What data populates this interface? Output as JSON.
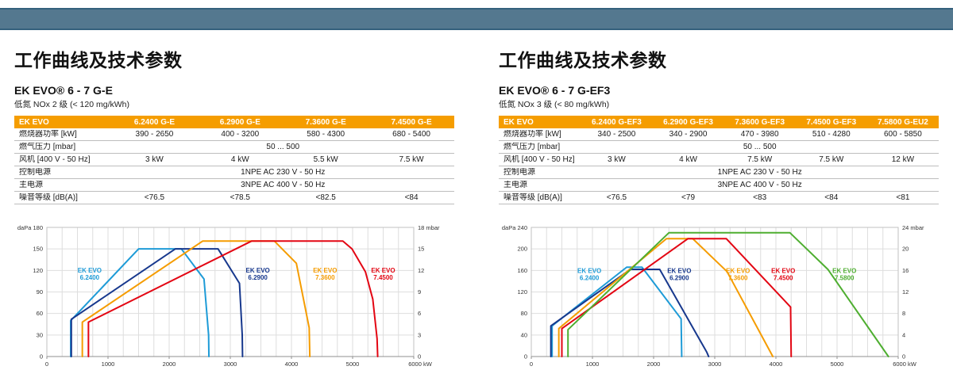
{
  "page": {
    "band_color": "#54788F",
    "accent_orange": "#F59D00"
  },
  "sections": [
    {
      "title": "工作曲线及技术参数",
      "model": "EK EVO® 6 - 7 G-E",
      "nox": "低氮 NOx 2 级 (< 120 mg/kWh)",
      "table": {
        "header": [
          "EK EVO",
          "6.2400 G-E",
          "6.2900 G-E",
          "7.3600 G-E",
          "7.4500 G-E"
        ],
        "rows": [
          {
            "label": "燃烧器功率 [kW]",
            "values": [
              "390 - 2650",
              "400 - 3200",
              "580 - 4300",
              "680 - 5400"
            ]
          },
          {
            "label": "燃气压力 [mbar]",
            "span": "50 ... 500"
          },
          {
            "label": "风机 [400 V - 50 Hz]",
            "values": [
              "3 kW",
              "4 kW",
              "5.5 kW",
              "7.5 kW"
            ]
          },
          {
            "label": "控制电源",
            "span": "1NPE AC 230 V - 50 Hz"
          },
          {
            "label": "主电源",
            "span": "3NPE AC 400 V - 50 Hz"
          },
          {
            "label": "噪音等级 [dB(A)]",
            "values": [
              "<76.5",
              "<78.5",
              "<82.5",
              "<84"
            ]
          }
        ]
      }
    },
    {
      "title": "工作曲线及技术参数",
      "model": "EK EVO® 6 - 7 G-EF3",
      "nox": "低氮 NOx 3 级 (< 80 mg/kWh)",
      "table": {
        "header": [
          "EK EVO",
          "6.2400 G-EF3",
          "6.2900 G-EF3",
          "7.3600 G-EF3",
          "7.4500 G-EF3",
          "7.5800 G-EU2"
        ],
        "rows": [
          {
            "label": "燃烧器功率 [kW]",
            "values": [
              "340 - 2500",
              "340 - 2900",
              "470 - 3980",
              "510 - 4280",
              "600 - 5850"
            ]
          },
          {
            "label": "燃气压力 [mbar]",
            "span": "50 ... 500"
          },
          {
            "label": "风机 [400 V - 50 Hz]",
            "values": [
              "3 kW",
              "4 kW",
              "7.5 kW",
              "7.5 kW",
              "12 kW"
            ]
          },
          {
            "label": "控制电源",
            "span": "1NPE AC 230 V - 50 Hz"
          },
          {
            "label": "主电源",
            "span": "3NPE AC 400 V - 50 Hz"
          },
          {
            "label": "噪音等级 [dB(A)]",
            "values": [
              "<76.5",
              "<79",
              "<83",
              "<84",
              "<81"
            ]
          }
        ]
      }
    }
  ],
  "chart_data": [
    {
      "type": "line",
      "title": "EK EVO 6 - 7 G-E 工作曲线",
      "xlabel": "kW",
      "ylabel_left": "daPa",
      "ylabel_right": "mbar",
      "xlim": [
        0,
        6000
      ],
      "ylim_left": [
        0,
        180
      ],
      "ylim_right": [
        0,
        18
      ],
      "x_ticks": [
        0,
        1000,
        2000,
        3000,
        4000,
        5000
      ],
      "x_end_tick": 6000,
      "x_end_label": "6000 kW",
      "y_ticks_left": [
        0,
        30,
        60,
        90,
        120,
        150
      ],
      "y_top_label_left": "daPa 180",
      "y_ticks_right": [
        0,
        3,
        6,
        9,
        12,
        15
      ],
      "y_top_label_right": "18 mbar",
      "x_minor_step": 250,
      "grid": true,
      "series": [
        {
          "name": "EK EVO 6.2400",
          "color": "#1E9BD7",
          "label": [
            "EK EVO",
            "6.2400"
          ],
          "label_pos": [
            700,
            113
          ],
          "points": [
            [
              390,
              0
            ],
            [
              390,
              50
            ],
            [
              1500,
              150
            ],
            [
              2200,
              150
            ],
            [
              2570,
              108
            ],
            [
              2645,
              30
            ],
            [
              2650,
              0
            ]
          ]
        },
        {
          "name": "EK EVO 6.2900",
          "color": "#17388D",
          "label": [
            "EK EVO",
            "6.2900"
          ],
          "label_pos": [
            3450,
            113
          ],
          "points": [
            [
              400,
              0
            ],
            [
              400,
              52
            ],
            [
              2100,
              150
            ],
            [
              2800,
              150
            ],
            [
              3150,
              102
            ],
            [
              3195,
              30
            ],
            [
              3200,
              0
            ]
          ]
        },
        {
          "name": "EK EVO 7.3600",
          "color": "#F59C00",
          "label": [
            "EK EVO",
            "7.3600"
          ],
          "label_pos": [
            4550,
            113
          ],
          "points": [
            [
              580,
              0
            ],
            [
              580,
              48
            ],
            [
              2550,
              161
            ],
            [
              3720,
              161
            ],
            [
              4080,
              130
            ],
            [
              4290,
              40
            ],
            [
              4300,
              0
            ]
          ]
        },
        {
          "name": "EK EVO 7.4500",
          "color": "#E30613",
          "label": [
            "EK EVO",
            "7.4500"
          ],
          "label_pos": [
            5500,
            113
          ],
          "points": [
            [
              680,
              0
            ],
            [
              680,
              48
            ],
            [
              3350,
              161
            ],
            [
              4840,
              161
            ],
            [
              4990,
              150
            ],
            [
              5210,
              118
            ],
            [
              5330,
              80
            ],
            [
              5400,
              25
            ],
            [
              5410,
              0
            ]
          ]
        }
      ]
    },
    {
      "type": "line",
      "title": "EK EVO 6 - 7 G-EF3 工作曲线",
      "xlabel": "kW",
      "ylabel_left": "daPa",
      "ylabel_right": "mbar",
      "xlim": [
        0,
        6000
      ],
      "ylim_left": [
        0,
        240
      ],
      "ylim_right": [
        0,
        24
      ],
      "x_ticks": [
        0,
        1000,
        2000,
        3000,
        4000,
        5000
      ],
      "x_end_tick": 6000,
      "x_end_label": "6000 kW",
      "y_ticks_left": [
        0,
        40,
        80,
        120,
        160,
        200
      ],
      "y_top_label_left": "daPa 240",
      "y_ticks_right": [
        0,
        4,
        8,
        12,
        16,
        20
      ],
      "y_top_label_right": "24 mbar",
      "x_minor_step": 250,
      "grid": true,
      "series": [
        {
          "name": "EK EVO 6.2400",
          "color": "#1E9BD7",
          "label": [
            "EK EVO",
            "6.2400"
          ],
          "label_pos": [
            950,
            150
          ],
          "points": [
            [
              340,
              0
            ],
            [
              340,
              57
            ],
            [
              1560,
              166
            ],
            [
              1810,
              166
            ],
            [
              2450,
              70
            ],
            [
              2460,
              0
            ]
          ]
        },
        {
          "name": "EK EVO 6.2900",
          "color": "#17388D",
          "label": [
            "EK EVO",
            "6.2900"
          ],
          "label_pos": [
            2420,
            150
          ],
          "points": [
            [
              320,
              0
            ],
            [
              320,
              57
            ],
            [
              1620,
              162
            ],
            [
              2100,
              162
            ],
            [
              2700,
              42
            ],
            [
              2870,
              8
            ],
            [
              2900,
              0
            ]
          ]
        },
        {
          "name": "EK EVO 7.3600",
          "color": "#F59C00",
          "label": [
            "EK EVO",
            "7.3600"
          ],
          "label_pos": [
            3380,
            150
          ],
          "points": [
            [
              450,
              0
            ],
            [
              450,
              52
            ],
            [
              2210,
              219
            ],
            [
              2640,
              219
            ],
            [
              3200,
              158
            ],
            [
              3950,
              0
            ]
          ]
        },
        {
          "name": "EK EVO 7.4500",
          "color": "#E30613",
          "label": [
            "EK EVO",
            "7.4500"
          ],
          "label_pos": [
            4120,
            150
          ],
          "points": [
            [
              500,
              0
            ],
            [
              500,
              52
            ],
            [
              2560,
              219
            ],
            [
              3190,
              219
            ],
            [
              4240,
              92
            ],
            [
              4250,
              0
            ]
          ]
        },
        {
          "name": "EK EVO 7.5800",
          "color": "#4EAE30",
          "label": [
            "EK EVO",
            "7.5800"
          ],
          "label_pos": [
            5120,
            150
          ],
          "points": [
            [
              600,
              0
            ],
            [
              600,
              50
            ],
            [
              2250,
              230
            ],
            [
              4230,
              230
            ],
            [
              4850,
              162
            ],
            [
              5840,
              0
            ]
          ]
        }
      ]
    }
  ]
}
